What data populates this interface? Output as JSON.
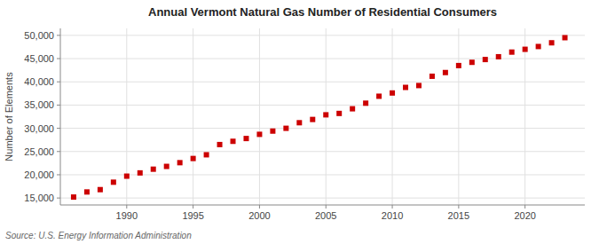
{
  "chart_data": {
    "type": "scatter",
    "title": "Annual Vermont Natural Gas Number of Residential Consumers",
    "ylabel": "Number of Elements",
    "source": "Source: U.S. Energy Information Administration",
    "x": [
      1986,
      1987,
      1988,
      1989,
      1990,
      1991,
      1992,
      1993,
      1994,
      1995,
      1996,
      1997,
      1998,
      1999,
      2000,
      2001,
      2002,
      2003,
      2004,
      2005,
      2006,
      2007,
      2008,
      2009,
      2010,
      2011,
      2012,
      2013,
      2014,
      2015,
      2016,
      2017,
      2018,
      2019,
      2020,
      2021,
      2022,
      2023
    ],
    "values": [
      15200,
      16300,
      16800,
      18400,
      19700,
      20400,
      21200,
      21800,
      22600,
      23500,
      24300,
      26500,
      27200,
      27800,
      28700,
      29400,
      30000,
      31200,
      31900,
      32900,
      33200,
      34200,
      35400,
      36900,
      37600,
      38800,
      39200,
      41200,
      42000,
      43500,
      44200,
      44800,
      45400,
      46400,
      47000,
      47600,
      48400,
      49500
    ],
    "color": "#cc0000",
    "marker": "square",
    "xlim": [
      1985.0,
      2024.5
    ],
    "xticks": [
      1990,
      1995,
      2000,
      2005,
      2010,
      2015,
      2020
    ],
    "ylim": [
      13500,
      51500
    ],
    "yticks": [
      {
        "value": 15000,
        "label": "15,000"
      },
      {
        "value": 20000,
        "label": "20,000"
      },
      {
        "value": 25000,
        "label": "25,000"
      },
      {
        "value": 30000,
        "label": "30,000"
      },
      {
        "value": 35000,
        "label": "35,000"
      },
      {
        "value": 40000,
        "label": "40,000"
      },
      {
        "value": 45000,
        "label": "45,000"
      },
      {
        "value": 50000,
        "label": "50,000"
      }
    ],
    "grid": true
  }
}
